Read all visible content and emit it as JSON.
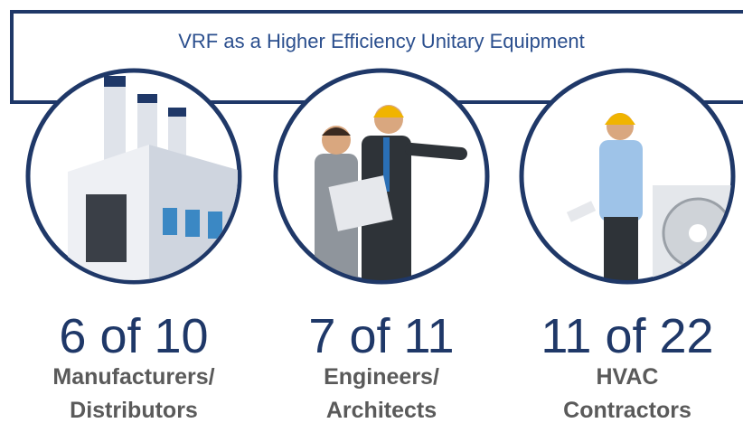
{
  "header": {
    "title": "VRF as a Higher Efficiency Unitary Equipment"
  },
  "items": [
    {
      "stat": "6 of 10",
      "label": [
        "Manufacturers/",
        "Distributors"
      ]
    },
    {
      "stat": "7 of 11",
      "label": [
        "Engineers/",
        "Architects"
      ]
    },
    {
      "stat": "11 of 22",
      "label": [
        "HVAC",
        "Contractors"
      ]
    }
  ]
}
